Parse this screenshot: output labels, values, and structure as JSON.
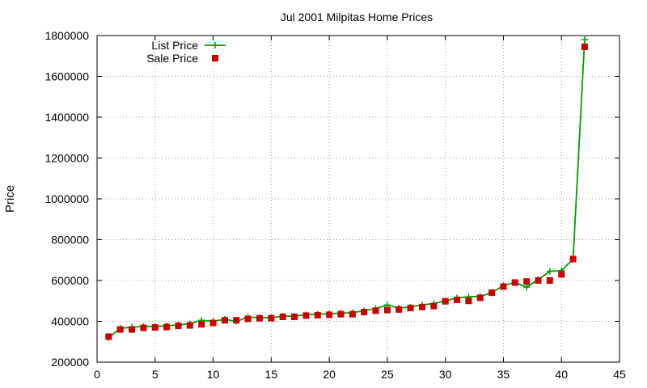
{
  "chart_data": {
    "type": "line",
    "title": "Jul 2001 Milpitas Home Prices",
    "xlabel": "",
    "ylabel": "Price",
    "xlim": [
      0,
      45
    ],
    "ylim": [
      200000,
      1800000
    ],
    "xticks": [
      0,
      5,
      10,
      15,
      20,
      25,
      30,
      35,
      40,
      45
    ],
    "yticks": [
      200000,
      400000,
      600000,
      800000,
      1000000,
      1200000,
      1400000,
      1600000,
      1800000
    ],
    "grid": true,
    "legend_position": "top-left",
    "series": [
      {
        "name": "List Price",
        "style": "line-with-plus-markers",
        "color": "#00a000",
        "x": [
          1,
          2,
          3,
          4,
          5,
          6,
          7,
          8,
          9,
          10,
          11,
          12,
          13,
          14,
          15,
          16,
          17,
          18,
          19,
          20,
          21,
          22,
          23,
          24,
          25,
          26,
          27,
          28,
          29,
          30,
          31,
          32,
          33,
          34,
          35,
          36,
          37,
          38,
          39,
          40,
          41,
          42
        ],
        "y": [
          320000,
          365000,
          372000,
          375000,
          375000,
          378000,
          382000,
          388000,
          405000,
          400000,
          410000,
          400000,
          420000,
          418000,
          418000,
          425000,
          425000,
          432000,
          435000,
          437000,
          440000,
          442000,
          452000,
          462000,
          480000,
          465000,
          470000,
          480000,
          487000,
          500000,
          515000,
          520000,
          522000,
          540000,
          575000,
          590000,
          567000,
          605000,
          645000,
          648000,
          705000,
          1780000
        ]
      },
      {
        "name": "Sale Price",
        "style": "square-markers",
        "color": "#cc0000",
        "x": [
          1,
          2,
          3,
          4,
          5,
          6,
          7,
          8,
          9,
          10,
          11,
          12,
          13,
          14,
          15,
          16,
          17,
          18,
          19,
          20,
          21,
          22,
          23,
          24,
          25,
          26,
          27,
          28,
          29,
          30,
          31,
          32,
          33,
          34,
          35,
          36,
          37,
          38,
          39,
          40,
          41,
          42
        ],
        "y": [
          325000,
          360000,
          360000,
          368000,
          370000,
          372000,
          378000,
          380000,
          385000,
          392000,
          405000,
          405000,
          412000,
          415000,
          415000,
          422000,
          422000,
          428000,
          430000,
          432000,
          435000,
          435000,
          445000,
          452000,
          455000,
          458000,
          465000,
          470000,
          475000,
          498000,
          505000,
          500000,
          515000,
          540000,
          570000,
          590000,
          595000,
          600000,
          600000,
          630000,
          705000,
          1745000
        ]
      }
    ]
  }
}
